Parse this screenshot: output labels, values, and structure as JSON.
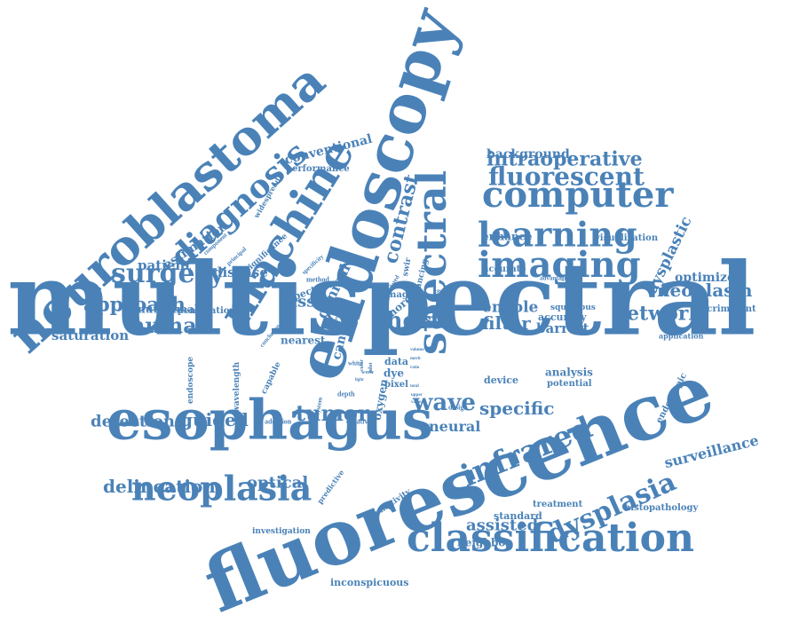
{
  "cloud": {
    "color": "#4a82b8",
    "words": [
      "multispectral",
      "fluorescence",
      "esophagus",
      "endoscopy",
      "neuroblastoma",
      "machine",
      "spectral",
      "imaging",
      "learning",
      "computer",
      "classification",
      "diagnosis",
      "neoplasia",
      "surgery",
      "fluorescent",
      "intraoperative",
      "infrared",
      "dysplasia",
      "tumor",
      "human",
      "short",
      "approach",
      "network",
      "neoplasm",
      "filter",
      "barrett",
      "contrast",
      "wave",
      "specific",
      "neural",
      "assisted",
      "delineation",
      "optical",
      "detection",
      "guided",
      "surveillance",
      "tissue",
      "enable",
      "enhance",
      "visualization",
      "dysplastic",
      "optimized",
      "background",
      "conventional",
      "performance",
      "estimation",
      "patient",
      "disease",
      "saturation",
      "dinutuximab",
      "penetration",
      "clinical",
      "cancer",
      "image",
      "more",
      "data",
      "dye",
      "pixel",
      "oxygen",
      "accuracy",
      "squamous",
      "discriminant",
      "application",
      "analysis",
      "potential",
      "device",
      "endoscopic",
      "treatment",
      "histopathology",
      "standard",
      "neighbor",
      "inconspicuous",
      "investigation",
      "sensitivity",
      "predictive",
      "curative",
      "adoption",
      "depth",
      "design",
      "system",
      "capable",
      "wavelength",
      "endoscope",
      "white",
      "nearest",
      "spectra",
      "method",
      "specificity",
      "significance",
      "principal",
      "component",
      "widespread",
      "conclusion",
      "accurate",
      "advantage",
      "enhancing",
      "study",
      "related",
      "swir",
      "provide",
      "result",
      "pilot",
      "color",
      "work",
      "light",
      "volume",
      "merit",
      "upper",
      "value",
      "total",
      "ratio"
    ]
  }
}
